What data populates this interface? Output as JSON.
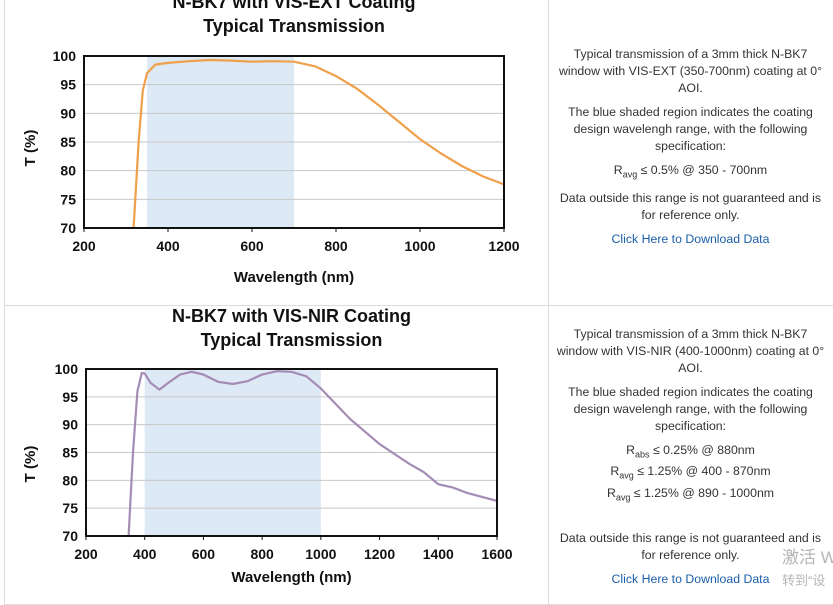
{
  "chart_data": [
    {
      "type": "line",
      "title": [
        "N-BK7 with VIS-EXT Coating",
        "Typical Transmission"
      ],
      "xlabel": "Wavelength (nm)",
      "ylabel": "T (%)",
      "xlim": [
        200,
        1200
      ],
      "xticks": [
        200,
        400,
        600,
        800,
        1000,
        1200
      ],
      "ylim": [
        70,
        100
      ],
      "yticks": [
        70,
        75,
        80,
        85,
        90,
        95,
        100
      ],
      "grid": true,
      "shaded_region": [
        350,
        700
      ],
      "shade_color": "#dde9f5",
      "color": "#f0a04b",
      "x": [
        318,
        330,
        340,
        350,
        370,
        400,
        450,
        500,
        550,
        600,
        650,
        700,
        750,
        800,
        850,
        900,
        950,
        1000,
        1050,
        1100,
        1150,
        1200
      ],
      "values": [
        70,
        85,
        94,
        97,
        98.5,
        98.8,
        99.1,
        99.3,
        99.2,
        99,
        99.1,
        99,
        98.2,
        96.5,
        94.3,
        91.5,
        88.5,
        85.5,
        83,
        80.8,
        79,
        77.6
      ]
    },
    {
      "type": "line",
      "title": [
        "N-BK7 with VIS-NIR Coating",
        "Typical Transmission"
      ],
      "xlabel": "Wavelength (nm)",
      "ylabel": "T (%)",
      "xlim": [
        200,
        1600
      ],
      "xticks": [
        200,
        400,
        600,
        800,
        1000,
        1200,
        1400,
        1600
      ],
      "ylim": [
        70,
        100
      ],
      "yticks": [
        70,
        75,
        80,
        85,
        90,
        95,
        100
      ],
      "grid": true,
      "shaded_region": [
        400,
        1000
      ],
      "shade_color": "#dde9f5",
      "color": "#a58cb5",
      "x": [
        345,
        360,
        375,
        390,
        400,
        420,
        450,
        480,
        520,
        560,
        600,
        650,
        700,
        750,
        800,
        850,
        900,
        950,
        1000,
        1100,
        1200,
        1300,
        1350,
        1400,
        1450,
        1500,
        1600
      ],
      "values": [
        70,
        85,
        96,
        99.3,
        99.2,
        97.5,
        96.3,
        97.5,
        99,
        99.5,
        99,
        97.7,
        97.3,
        97.8,
        99,
        99.6,
        99.5,
        98.7,
        96.5,
        91,
        86.5,
        83,
        81.5,
        79.3,
        78.7,
        77.7,
        76.3
      ]
    }
  ],
  "descriptions": [
    {
      "intro": "Typical transmission of a 3mm thick N-BK7 window with VIS-EXT (350-700nm) coating at 0° AOI.",
      "shading": "The blue shaded region indicates the coating design wavelengh range, with the following specification:",
      "specs": [
        {
          "symbol": "R",
          "sub": "avg",
          "text": "≤ 0.5% @ 350 - 700nm"
        }
      ],
      "note": "Data outside this range is not guaranteed and is for reference only.",
      "link": "Click Here to Download Data"
    },
    {
      "intro": "Typical transmission of a 3mm thick N-BK7 window with VIS-NIR (400-1000nm) coating at 0° AOI.",
      "shading": "The blue shaded region indicates the coating design wavelengh range, with the following specification:",
      "specs": [
        {
          "symbol": "R",
          "sub": "abs",
          "text": "≤ 0.25% @ 880nm"
        },
        {
          "symbol": "R",
          "sub": "avg",
          "text": "≤ 1.25% @ 400 - 870nm"
        },
        {
          "symbol": "R",
          "sub": "avg",
          "text": "≤ 1.25% @ 890 - 1000nm"
        }
      ],
      "note": "Data outside this range is not guaranteed and is for reference only.",
      "link": "Click Here to Download Data"
    }
  ],
  "watermark": [
    "激活 W",
    "转到“设"
  ]
}
